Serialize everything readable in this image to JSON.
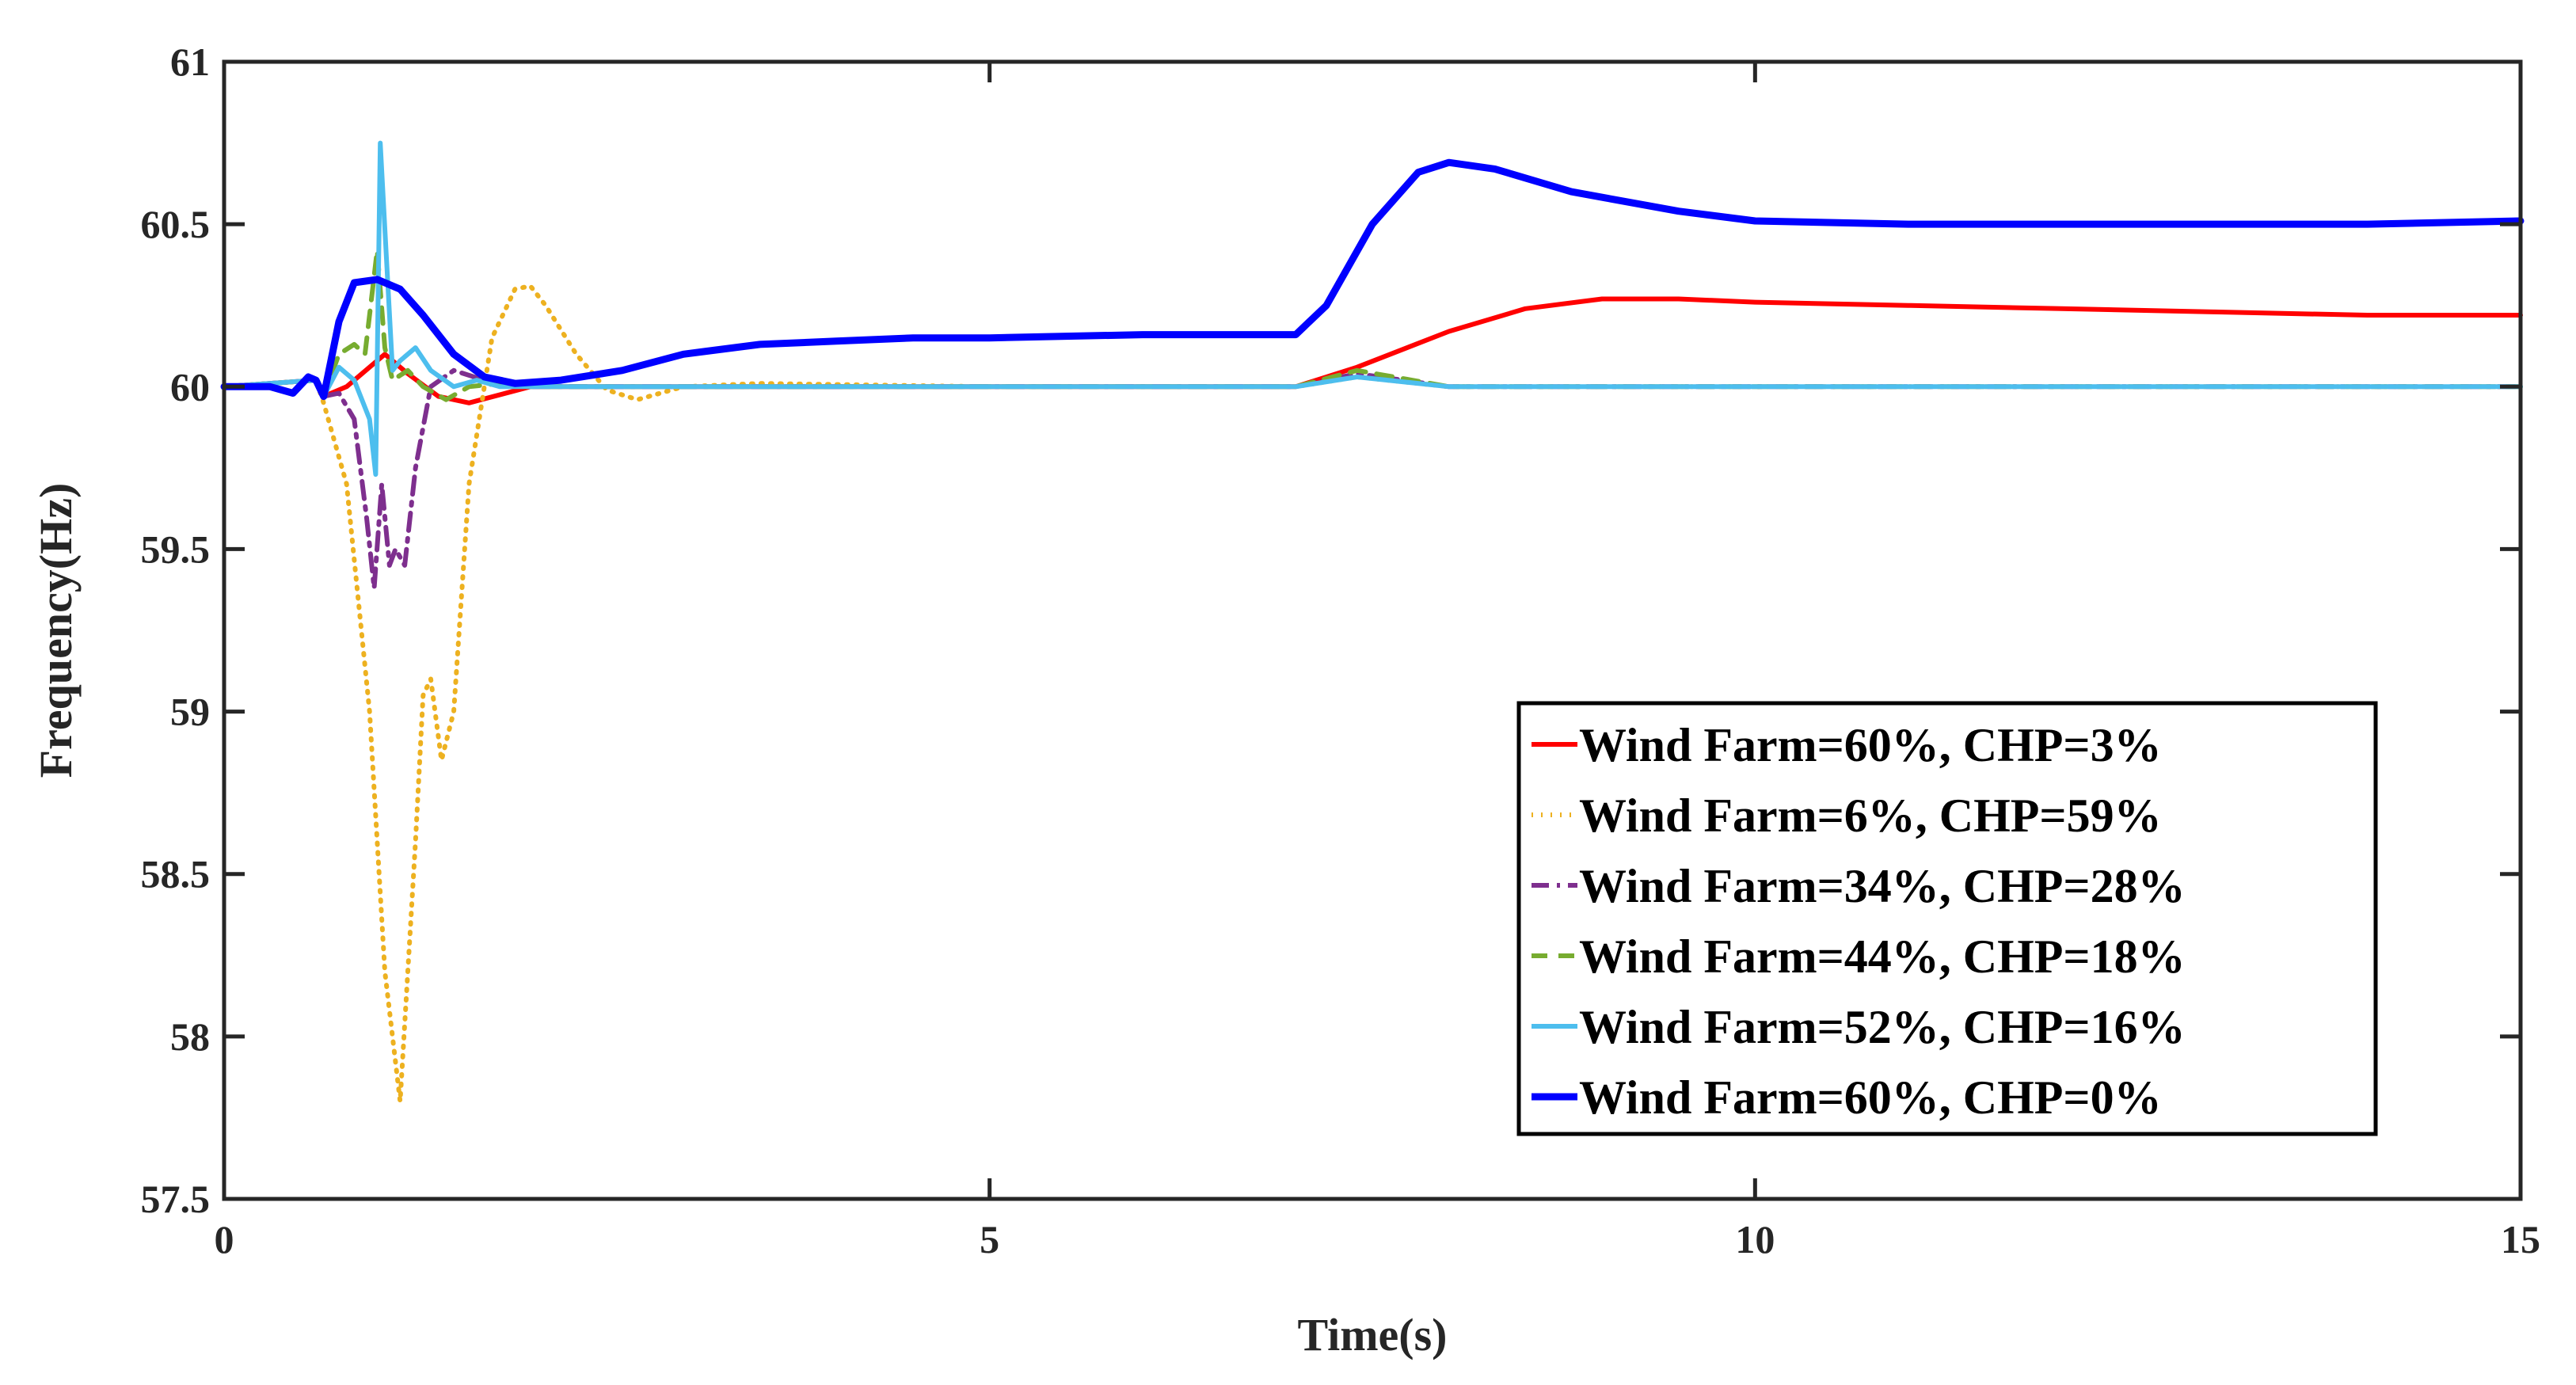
{
  "chart_data": {
    "type": "line",
    "title": "",
    "xlabel": "Time(s)",
    "ylabel": "Frequency(Hz)",
    "xlim": [
      0,
      15
    ],
    "ylim": [
      57.5,
      61
    ],
    "xticks": [
      0,
      5,
      10,
      15
    ],
    "xtick_labels": [
      "0",
      "5",
      "10",
      "15"
    ],
    "yticks": [
      57.5,
      58,
      58.5,
      59,
      59.5,
      60,
      60.5,
      61
    ],
    "ytick_labels": [
      "57.5",
      "58",
      "58.5",
      "59",
      "59.5",
      "60",
      "60.5",
      "61"
    ],
    "grid": false,
    "legend_position": "bottom-right",
    "series": [
      {
        "name": "Wind Farm=60%, CHP=3%",
        "color": "#ff0000",
        "style": "solid",
        "x": [
          0,
          0.6,
          0.65,
          0.8,
          0.95,
          1.05,
          1.2,
          1.4,
          1.6,
          2.0,
          3.0,
          5.0,
          7.0,
          7.4,
          8.0,
          8.5,
          9.0,
          9.5,
          10.0,
          11.0,
          12.0,
          13.0,
          14.0,
          15.0
        ],
        "y": [
          60.0,
          60.02,
          59.97,
          60.0,
          60.06,
          60.1,
          60.04,
          59.97,
          59.95,
          60.0,
          60.0,
          60.0,
          60.0,
          60.06,
          60.17,
          60.24,
          60.27,
          60.27,
          60.26,
          60.25,
          60.24,
          60.23,
          60.22,
          60.22
        ]
      },
      {
        "name": "Wind Farm=6%, CHP=59%",
        "color": "#edb120",
        "style": "dotted",
        "x": [
          0,
          0.6,
          0.65,
          0.8,
          0.95,
          1.05,
          1.15,
          1.25,
          1.3,
          1.35,
          1.42,
          1.5,
          1.6,
          1.75,
          1.9,
          2.0,
          2.1,
          2.3,
          2.5,
          2.7,
          3.0,
          3.5,
          5.0,
          7.0,
          7.4,
          8.0,
          15.0
        ],
        "y": [
          60.0,
          60.02,
          59.95,
          59.7,
          59.0,
          58.2,
          57.8,
          58.6,
          59.05,
          59.1,
          58.85,
          59.0,
          59.7,
          60.15,
          60.3,
          60.31,
          60.25,
          60.1,
          59.99,
          59.96,
          60.0,
          60.01,
          60.0,
          60.0,
          60.03,
          60.0,
          60.0
        ]
      },
      {
        "name": "Wind Farm=34%, CHP=28%",
        "color": "#7e2f8e",
        "style": "dashdot",
        "x": [
          0,
          0.6,
          0.65,
          0.75,
          0.85,
          0.93,
          0.98,
          1.03,
          1.08,
          1.12,
          1.18,
          1.25,
          1.35,
          1.5,
          1.7,
          2.0,
          5.0,
          7.0,
          7.4,
          8.0,
          15.0
        ],
        "y": [
          60.0,
          60.02,
          59.97,
          59.98,
          59.9,
          59.6,
          59.38,
          59.7,
          59.45,
          59.5,
          59.45,
          59.75,
          60.0,
          60.05,
          60.02,
          60.0,
          60.0,
          60.0,
          60.04,
          60.0,
          60.0
        ]
      },
      {
        "name": "Wind Farm=44%, CHP=18%",
        "color": "#77ac30",
        "style": "dashed",
        "x": [
          0,
          0.6,
          0.65,
          0.75,
          0.85,
          0.92,
          1.0,
          1.05,
          1.1,
          1.2,
          1.3,
          1.45,
          1.6,
          1.8,
          2.0,
          5.0,
          7.0,
          7.4,
          8.0,
          15.0
        ],
        "y": [
          60.0,
          60.02,
          59.97,
          60.1,
          60.13,
          60.1,
          60.42,
          60.12,
          60.02,
          60.05,
          60.0,
          59.96,
          60.0,
          60.01,
          60.0,
          60.0,
          60.0,
          60.05,
          60.0,
          60.0
        ]
      },
      {
        "name": "Wind Farm=52%, CHP=16%",
        "color": "#4dbeee",
        "style": "solid",
        "x": [
          0,
          0.6,
          0.65,
          0.75,
          0.85,
          0.95,
          0.99,
          1.02,
          1.06,
          1.1,
          1.15,
          1.25,
          1.35,
          1.5,
          1.65,
          1.8,
          2.0,
          5.0,
          7.0,
          7.4,
          8.0,
          15.0
        ],
        "y": [
          60.0,
          60.02,
          59.97,
          60.06,
          60.02,
          59.9,
          59.73,
          60.75,
          60.4,
          60.05,
          60.08,
          60.12,
          60.05,
          60.0,
          60.02,
          60.0,
          60.0,
          60.0,
          60.0,
          60.03,
          60.0,
          60.0
        ]
      },
      {
        "name": "Wind Farm=60%, CHP=0%",
        "color": "#0000ff",
        "style": "solid",
        "x": [
          0,
          0.3,
          0.45,
          0.55,
          0.6,
          0.65,
          0.75,
          0.85,
          1.0,
          1.15,
          1.3,
          1.5,
          1.7,
          1.9,
          2.2,
          2.6,
          3.0,
          3.5,
          4.0,
          4.5,
          5.0,
          6.0,
          6.8,
          7.0,
          7.2,
          7.5,
          7.8,
          8.0,
          8.3,
          8.8,
          9.5,
          10.0,
          11.0,
          12.0,
          13.0,
          14.0,
          15.0
        ],
        "y": [
          60.0,
          60.0,
          59.98,
          60.03,
          60.02,
          59.97,
          60.2,
          60.32,
          60.33,
          60.3,
          60.22,
          60.1,
          60.03,
          60.01,
          60.02,
          60.05,
          60.1,
          60.13,
          60.14,
          60.15,
          60.15,
          60.16,
          60.16,
          60.16,
          60.25,
          60.5,
          60.66,
          60.69,
          60.67,
          60.6,
          60.54,
          60.51,
          60.5,
          60.5,
          60.5,
          60.5,
          60.51
        ]
      }
    ]
  }
}
